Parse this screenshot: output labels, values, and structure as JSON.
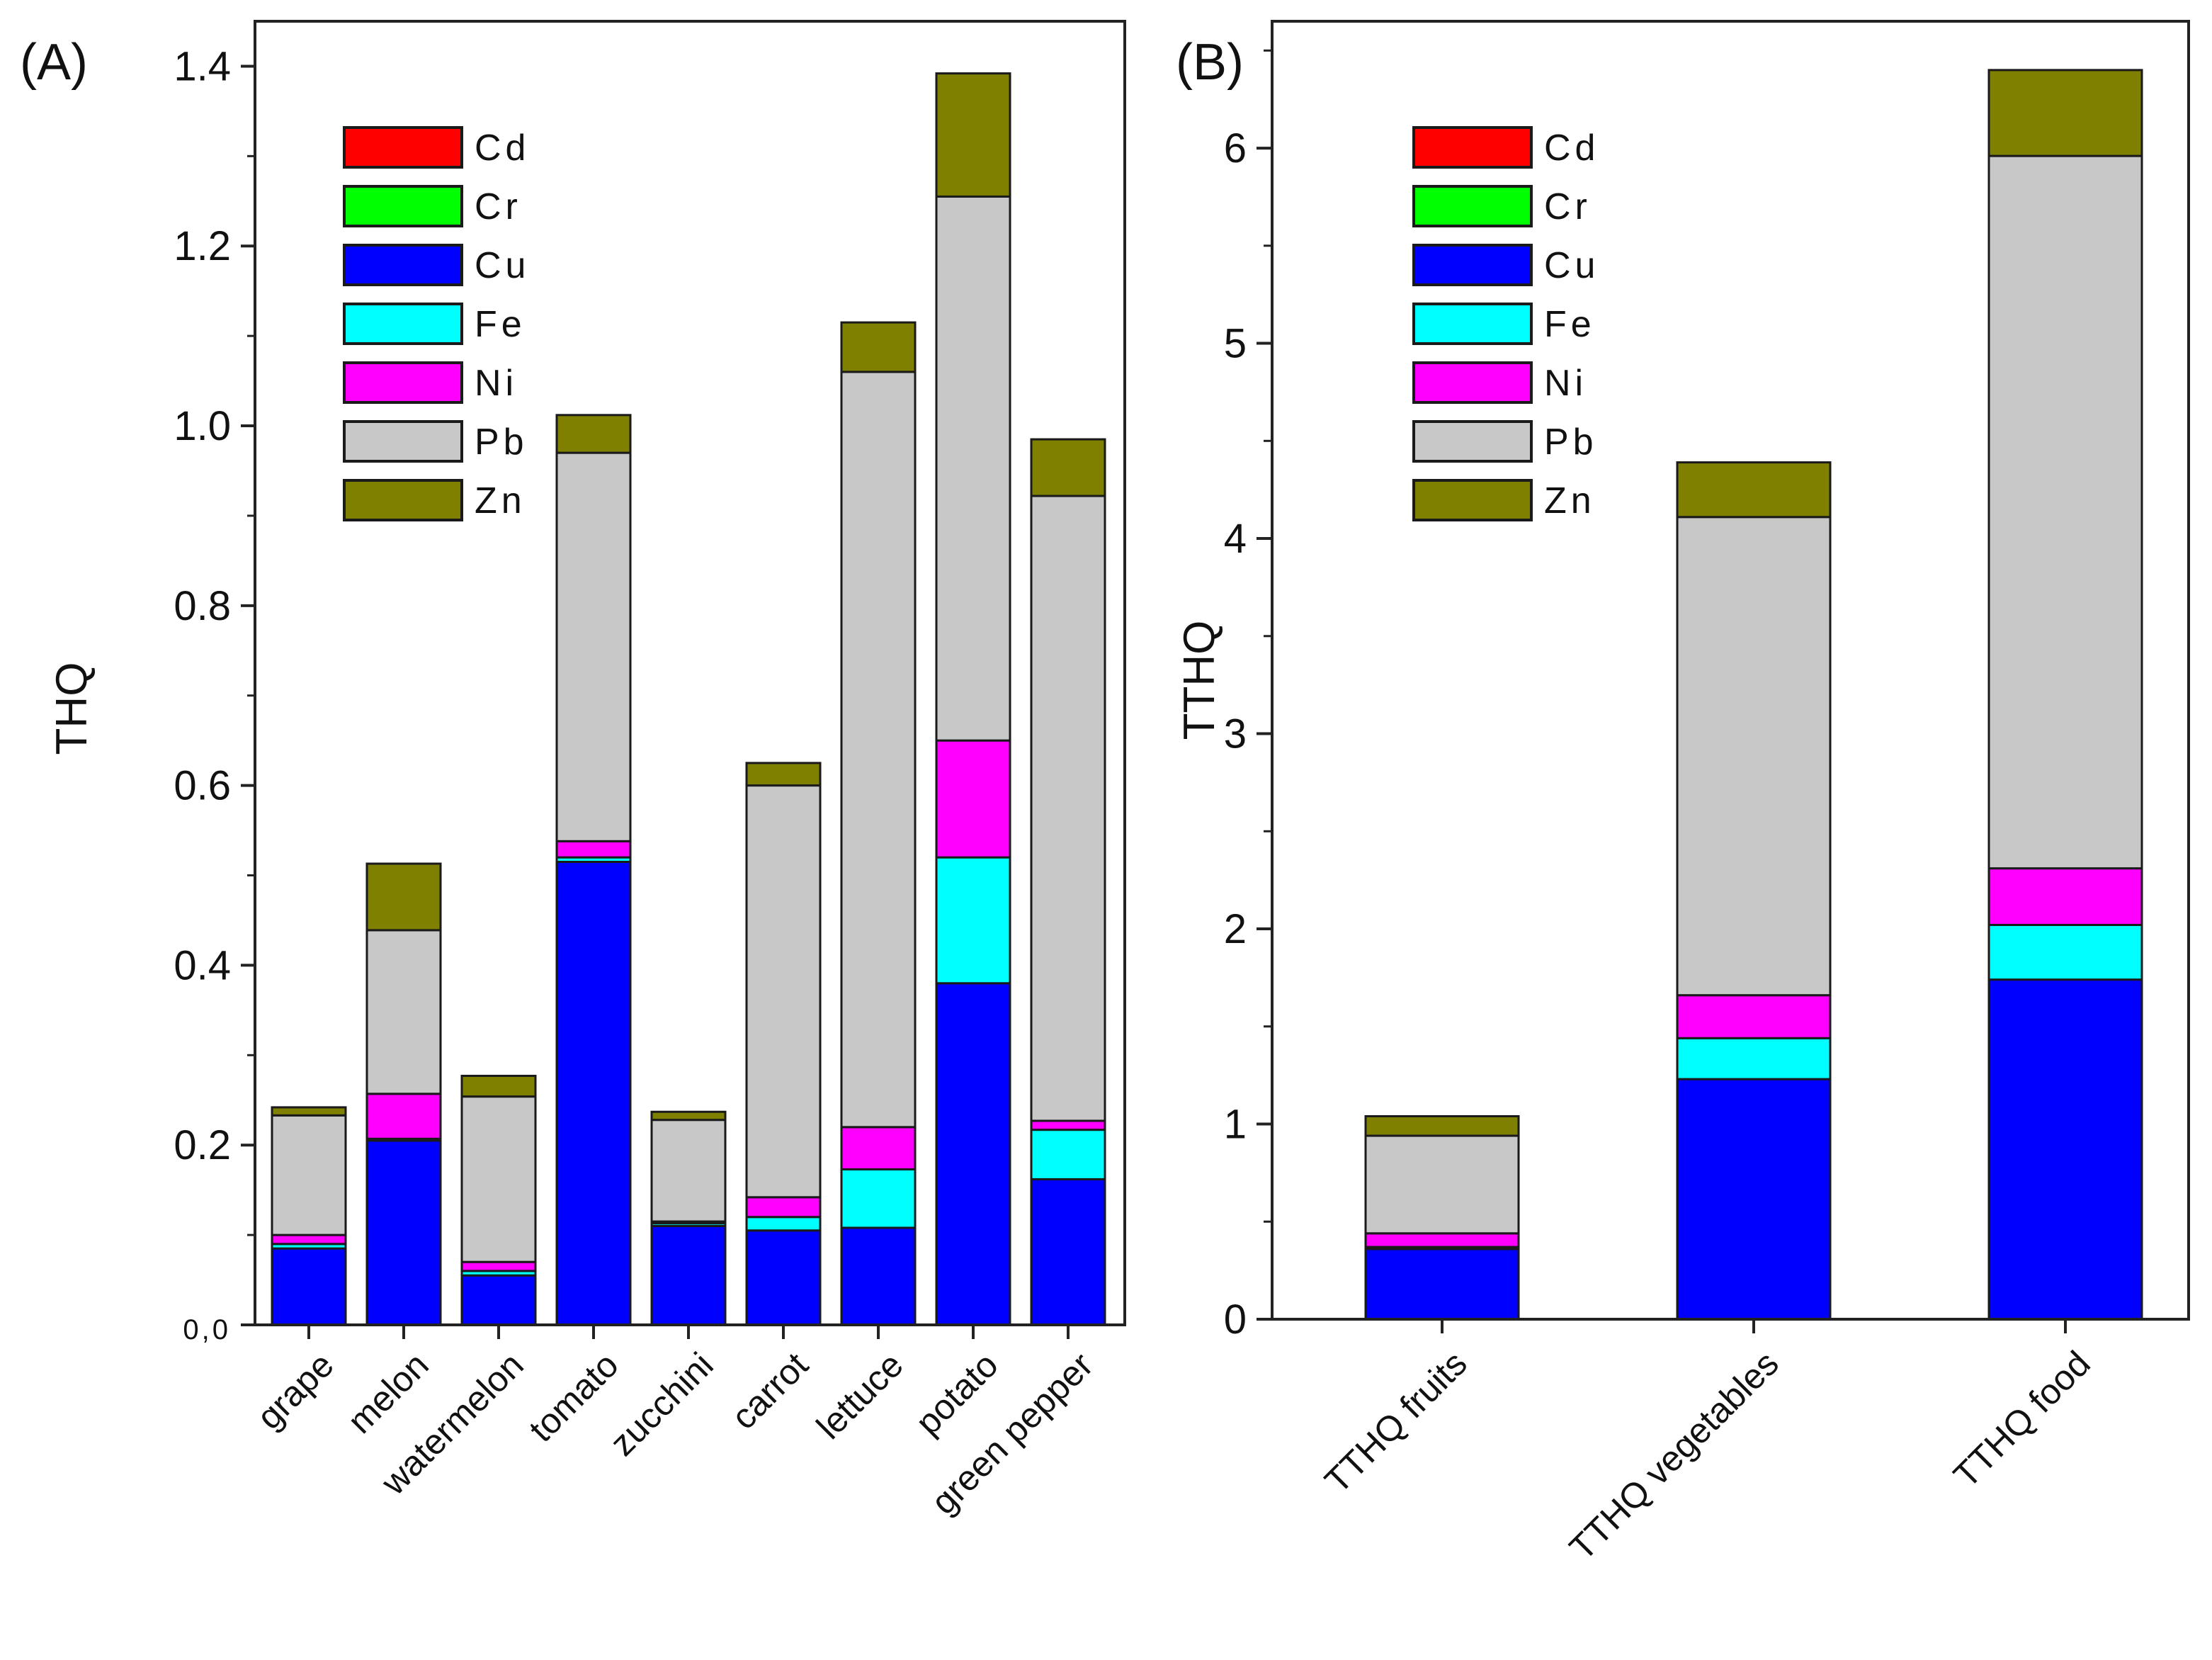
{
  "chart_data": [
    {
      "type": "bar",
      "stacked": true,
      "panel_label": "(A)",
      "title": "",
      "xlabel": "",
      "ylabel": "THQ",
      "ylim": [
        0,
        1.45
      ],
      "y_ticks": [
        {
          "value": 0,
          "label": "0,0"
        },
        {
          "value": 0.2,
          "label": "0.2"
        },
        {
          "value": 0.4,
          "label": "0.4"
        },
        {
          "value": 0.6,
          "label": "0.6"
        },
        {
          "value": 0.8,
          "label": "0.8"
        },
        {
          "value": 1.0,
          "label": "1.0"
        },
        {
          "value": 1.2,
          "label": "1.2"
        },
        {
          "value": 1.4,
          "label": "1.4"
        }
      ],
      "categories": [
        "grape",
        "melon",
        "watermelon",
        "tomato",
        "zucchini",
        "carrot",
        "lettuce",
        "potato",
        "green pepper"
      ],
      "legend_position": "top-left",
      "series": [
        {
          "name": "Cd",
          "color": "#ff0000",
          "values": [
            0,
            0,
            0,
            0,
            0,
            0,
            0,
            0,
            0
          ]
        },
        {
          "name": "Cr",
          "color": "#00ff00",
          "values": [
            0,
            0,
            0,
            0,
            0,
            0,
            0,
            0,
            0
          ]
        },
        {
          "name": "Cu",
          "color": "#0000ff",
          "values": [
            0.085,
            0.205,
            0.055,
            0.515,
            0.11,
            0.105,
            0.108,
            0.38,
            0.162
          ]
        },
        {
          "name": "Fe",
          "color": "#00ffff",
          "values": [
            0.005,
            0.002,
            0.005,
            0.005,
            0.003,
            0.015,
            0.065,
            0.14,
            0.055
          ]
        },
        {
          "name": "Ni",
          "color": "#ff00ff",
          "values": [
            0.01,
            0.05,
            0.01,
            0.018,
            0.002,
            0.022,
            0.047,
            0.13,
            0.01
          ]
        },
        {
          "name": "Pb",
          "color": "#c8c8c8",
          "values": [
            0.133,
            0.182,
            0.184,
            0.432,
            0.113,
            0.458,
            0.84,
            0.605,
            0.695
          ]
        },
        {
          "name": "Zn",
          "color": "#7f7f00",
          "values": [
            0.009,
            0.074,
            0.023,
            0.042,
            0.009,
            0.025,
            0.055,
            0.137,
            0.063
          ]
        }
      ]
    },
    {
      "type": "bar",
      "stacked": true,
      "panel_label": "(B)",
      "title": "",
      "xlabel": "",
      "ylabel": "TTHQ",
      "ylim": [
        0,
        6.65
      ],
      "y_ticks": [
        {
          "value": 0,
          "label": "0"
        },
        {
          "value": 1,
          "label": "1"
        },
        {
          "value": 2,
          "label": "2"
        },
        {
          "value": 3,
          "label": "3"
        },
        {
          "value": 4,
          "label": "4"
        },
        {
          "value": 5,
          "label": "5"
        },
        {
          "value": 6,
          "label": "6"
        }
      ],
      "categories": [
        "TTHQ fruits",
        "TTHQ vegetables",
        "TTHQ food"
      ],
      "legend_position": "top-left",
      "series": [
        {
          "name": "Cd",
          "color": "#ff0000",
          "values": [
            0,
            0,
            0
          ]
        },
        {
          "name": "Cr",
          "color": "#00ff00",
          "values": [
            0,
            0,
            0
          ]
        },
        {
          "name": "Cu",
          "color": "#0000ff",
          "values": [
            0.36,
            1.23,
            1.74
          ]
        },
        {
          "name": "Fe",
          "color": "#00ffff",
          "values": [
            0.01,
            0.21,
            0.28
          ]
        },
        {
          "name": "Ni",
          "color": "#ff00ff",
          "values": [
            0.07,
            0.22,
            0.29
          ]
        },
        {
          "name": "Pb",
          "color": "#c8c8c8",
          "values": [
            0.5,
            2.45,
            3.65
          ]
        },
        {
          "name": "Zn",
          "color": "#7f7f00",
          "values": [
            0.1,
            0.28,
            0.44
          ]
        }
      ]
    }
  ]
}
